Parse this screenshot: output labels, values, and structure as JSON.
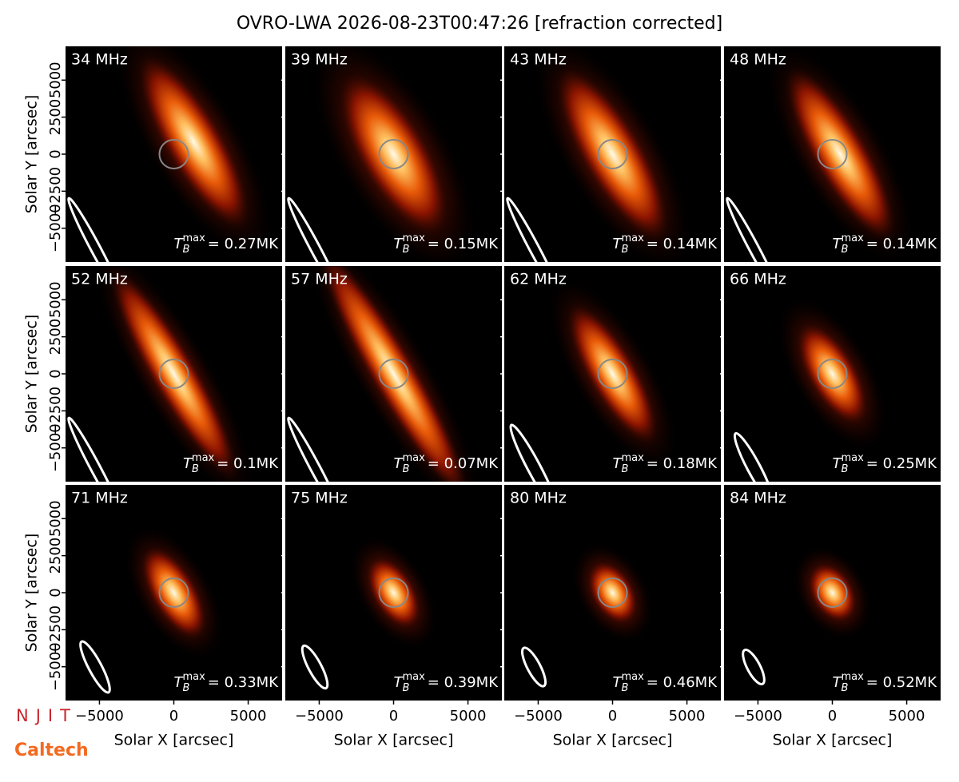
{
  "chart_data": {
    "type": "image",
    "title": "OVRO-LWA 2026-08-23T00:47:26 [refraction corrected]",
    "xlabel": "Solar X [arcsec]",
    "ylabel": "Solar Y [arcsec]",
    "xlim": [
      -7280,
      7280
    ],
    "ylim": [
      -7280,
      7280
    ],
    "xticks": [
      {
        "value": -5000,
        "label": "−5000"
      },
      0,
      5000
    ],
    "yticks": [
      {
        "value": -5000,
        "label": "−5000"
      },
      {
        "value": -2500,
        "label": "−2500"
      },
      0,
      2500,
      5000
    ],
    "tb_symbol": "T",
    "tb_sub": "B",
    "tb_sup": "max",
    "panels": [
      {
        "frequency": "34 MHz",
        "tb_max": "= 0.27MK"
      },
      {
        "frequency": "39 MHz",
        "tb_max": "= 0.15MK"
      },
      {
        "frequency": "43 MHz",
        "tb_max": "= 0.14MK"
      },
      {
        "frequency": "48 MHz",
        "tb_max": "= 0.14MK"
      },
      {
        "frequency": "52 MHz",
        "tb_max": "= 0.1MK"
      },
      {
        "frequency": "57 MHz",
        "tb_max": "= 0.07MK"
      },
      {
        "frequency": "62 MHz",
        "tb_max": "= 0.18MK"
      },
      {
        "frequency": "66 MHz",
        "tb_max": "= 0.25MK"
      },
      {
        "frequency": "71 MHz",
        "tb_max": "= 0.33MK"
      },
      {
        "frequency": "75 MHz",
        "tb_max": "= 0.39MK"
      },
      {
        "frequency": "80 MHz",
        "tb_max": "= 0.46MK"
      },
      {
        "frequency": "84 MHz",
        "tb_max": "= 0.52MK"
      }
    ]
  },
  "logos": [
    "NJIT",
    "Caltech"
  ]
}
